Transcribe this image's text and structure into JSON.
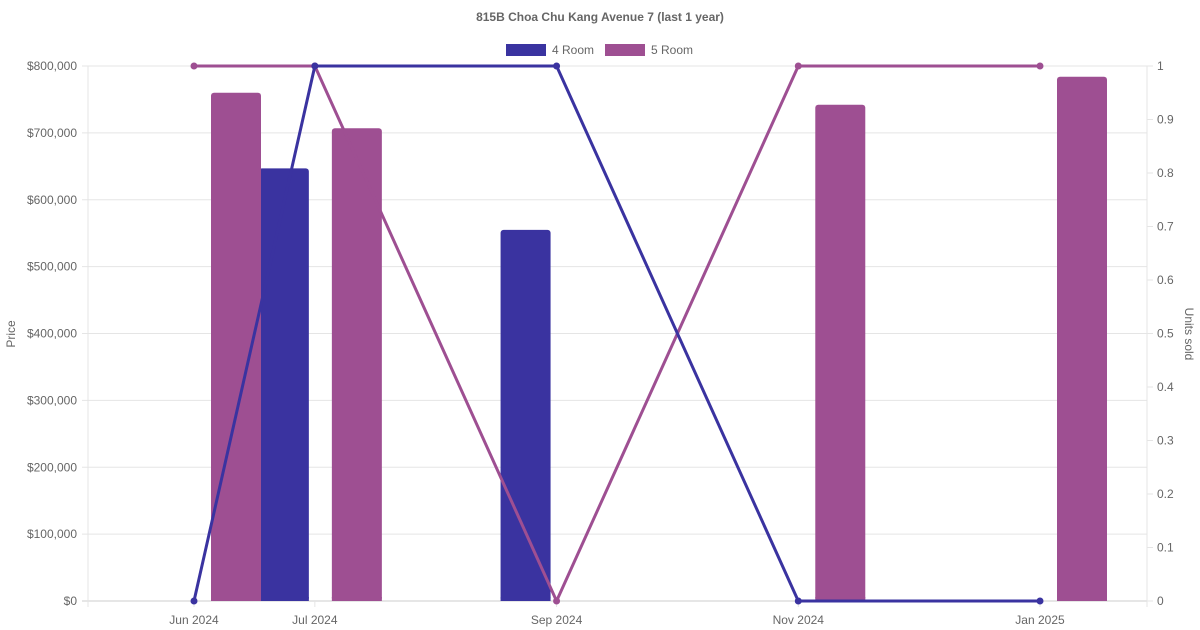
{
  "chart_data": {
    "type": "bar",
    "title": "815B Choa Chu Kang Avenue 7 (last 1 year)",
    "categories": [
      "Jun 2024",
      "Jul 2024",
      "Sep 2024",
      "Nov 2024",
      "Jan 2025"
    ],
    "y_left": {
      "label": "Price",
      "lim": [
        0,
        800000
      ],
      "ticks": [
        "$0",
        "$100,000",
        "$200,000",
        "$300,000",
        "$400,000",
        "$500,000",
        "$600,000",
        "$700,000",
        "$800,000"
      ],
      "tick_values": [
        0,
        100000,
        200000,
        300000,
        400000,
        500000,
        600000,
        700000,
        800000
      ]
    },
    "y_right": {
      "label": "Units sold",
      "lim": [
        0,
        1
      ],
      "ticks": [
        "0",
        "0.1",
        "0.2",
        "0.3",
        "0.4",
        "0.5",
        "0.6",
        "0.7",
        "0.8",
        "0.9",
        "1"
      ],
      "tick_values": [
        0,
        0.1,
        0.2,
        0.3,
        0.4,
        0.5,
        0.6,
        0.7,
        0.8,
        0.9,
        1
      ]
    },
    "series": [
      {
        "name": "4 Room",
        "color": "#3a33a0",
        "price": [
          null,
          647000,
          555000,
          null,
          null
        ],
        "units_sold": [
          0,
          1,
          1,
          0,
          0
        ]
      },
      {
        "name": "5 Room",
        "color": "#9e4f92",
        "price": [
          760000,
          707000,
          null,
          742000,
          784000
        ],
        "units_sold": [
          1,
          1,
          0,
          1,
          1
        ]
      }
    ],
    "legend_position": "top",
    "grid": true
  }
}
